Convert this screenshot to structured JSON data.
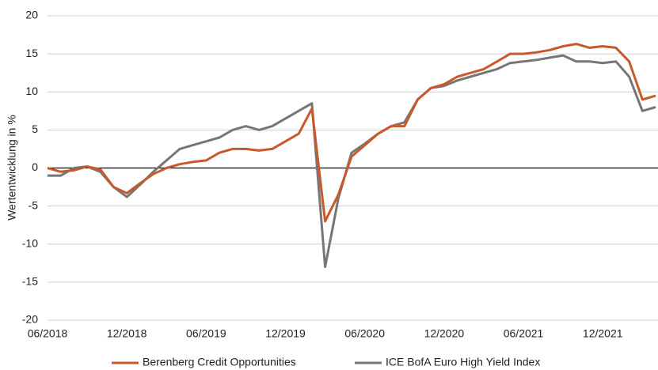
{
  "chart_data": {
    "type": "line",
    "y_label": "Wertentwicklung in %",
    "x": [
      "06/2018",
      "07/2018",
      "08/2018",
      "09/2018",
      "10/2018",
      "11/2018",
      "12/2018",
      "01/2019",
      "02/2019",
      "03/2019",
      "04/2019",
      "05/2019",
      "06/2019",
      "07/2019",
      "08/2019",
      "09/2019",
      "10/2019",
      "11/2019",
      "12/2019",
      "01/2020",
      "02/2020",
      "03/2020",
      "04/2020",
      "05/2020",
      "06/2020",
      "07/2020",
      "08/2020",
      "09/2020",
      "10/2020",
      "11/2020",
      "12/2020",
      "01/2021",
      "02/2021",
      "03/2021",
      "04/2021",
      "05/2021",
      "06/2021",
      "07/2021",
      "08/2021",
      "09/2021",
      "10/2021",
      "11/2021",
      "12/2021",
      "01/2022",
      "02/2022",
      "03/2022",
      "04/2022"
    ],
    "xticks": [
      "06/2018",
      "12/2018",
      "06/2019",
      "12/2019",
      "06/2020",
      "12/2020",
      "06/2021",
      "12/2021"
    ],
    "series": [
      {
        "name": "Berenberg Credit Opportunities",
        "color": "#c8592a",
        "values": [
          0,
          -0.5,
          -0.3,
          0.2,
          -0.2,
          -2.5,
          -3.3,
          -2,
          -0.8,
          0,
          0.5,
          0.8,
          1,
          2,
          2.5,
          2.5,
          2.3,
          2.5,
          3.5,
          4.5,
          7.8,
          -7,
          -3.5,
          1.5,
          3,
          4.5,
          5.5,
          5.5,
          9,
          10.5,
          11,
          12,
          12.5,
          13,
          14,
          15,
          15,
          15.2,
          15.5,
          16,
          16.3,
          15.8,
          16,
          15.8,
          14,
          9,
          9.5
        ]
      },
      {
        "name": "ICE BofA Euro High Yield Index",
        "color": "#767676",
        "values": [
          -1,
          -1,
          0,
          0.2,
          -0.5,
          -2.5,
          -3.8,
          -2.2,
          -0.5,
          1,
          2.5,
          3,
          3.5,
          4,
          5,
          5.5,
          5,
          5.5,
          6.5,
          7.5,
          8.5,
          -13,
          -4,
          2,
          3.2,
          4.5,
          5.5,
          6,
          9,
          10.5,
          10.8,
          11.5,
          12,
          12.5,
          13,
          13.8,
          14,
          14.2,
          14.5,
          14.8,
          14,
          14,
          13.8,
          14,
          12,
          7.5,
          8
        ]
      }
    ],
    "ylim": [
      -20,
      20
    ],
    "yticks": [
      -20,
      -15,
      -10,
      -5,
      0,
      5,
      10,
      15,
      20
    ],
    "grid": true,
    "legend": "bottom"
  }
}
